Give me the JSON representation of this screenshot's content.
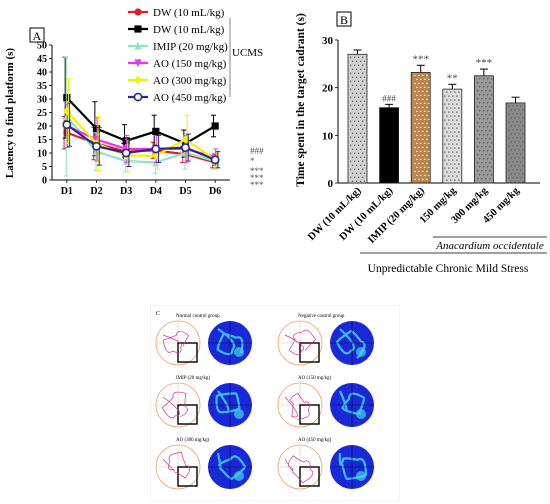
{
  "colors": {
    "dw_control": "#dd1f26",
    "dw_ucms": "#000000",
    "imip": "#8ee3c8",
    "ao150": "#ee33ee",
    "ao300": "#f4f000",
    "ao450": "#2a2a8c",
    "maze_bg": "#1a28d8",
    "maze_hot": "#3fd8f0"
  },
  "panel_a": {
    "label": "A",
    "ucms_label": "UCMS",
    "sig": [
      "###",
      "*",
      "***",
      "***",
      "***"
    ]
  },
  "panel_b": {
    "label": "B",
    "sigs": [
      "",
      "###",
      "***",
      "**",
      "***",
      ""
    ],
    "ao_label": "Anacardium occidentale",
    "ucms_label": "Unpredictable Chronic Mild Stress"
  },
  "panel_c": {
    "label": "C",
    "groups": [
      "Normal control group",
      "Negative control group",
      "IMIP (20 mg/kg)",
      "AO (150 mg/kg)",
      "AO (300 mg/kg)",
      "AO (450 mg/kg)"
    ]
  },
  "chart_data": [
    {
      "type": "line",
      "panel": "A",
      "title": "",
      "xlabel": "",
      "ylabel": "Latency to find platform (s)",
      "x": [
        "D1",
        "D2",
        "D3",
        "D4",
        "D5",
        "D6"
      ],
      "ylim": [
        0,
        50
      ],
      "yticks": [
        0,
        5,
        10,
        15,
        20,
        25,
        30,
        35,
        40,
        45,
        50
      ],
      "legend_position": "top-right",
      "series": [
        {
          "name": "DW (10 mL/kg)",
          "values": [
            17.5,
            13.5,
            10.5,
            11.0,
            9.5,
            6.5
          ],
          "errors": [
            6,
            6,
            3,
            3,
            3,
            2
          ],
          "color": "#dd1f26",
          "marker": "circle"
        },
        {
          "name": "DW (10 mL/kg)",
          "values": [
            30.5,
            19.0,
            14.5,
            18.0,
            13.5,
            20.0
          ],
          "errors": [
            15,
            10,
            6,
            6,
            5,
            4
          ],
          "color": "#000000",
          "marker": "square"
        },
        {
          "name": "IMIP (20 mg/kg)",
          "values": [
            23.5,
            10.5,
            7.0,
            6.5,
            10.0,
            7.0
          ],
          "errors": [
            22,
            7,
            4,
            4,
            6,
            3
          ],
          "color": "#8ee3c8",
          "marker": "triangle"
        },
        {
          "name": "AO (150 mg/kg)",
          "values": [
            20.0,
            15.0,
            11.5,
            11.5,
            11.5,
            8.5
          ],
          "errors": [
            8,
            8,
            5,
            5,
            5,
            3
          ],
          "color": "#ee33ee",
          "marker": "triangle-down"
        },
        {
          "name": "AO (300 mg/kg)",
          "values": [
            25.5,
            13.5,
            9.0,
            9.0,
            15.0,
            7.5
          ],
          "errors": [
            12,
            10,
            6,
            5,
            9,
            3
          ],
          "color": "#f4f000",
          "marker": "diamond"
        },
        {
          "name": "AO (450 mg/kg)",
          "values": [
            20.5,
            12.5,
            10.0,
            11.5,
            12.0,
            7.5
          ],
          "errors": [
            8,
            7,
            5,
            5,
            5,
            3
          ],
          "color": "#2a2a8c",
          "marker": "circle-open"
        }
      ]
    },
    {
      "type": "bar",
      "panel": "B",
      "title": "",
      "xlabel": "",
      "ylabel": "Time spent in the target cadrant (s)",
      "categories": [
        "DW (10 mL/kg)",
        "DW (10 mL/kg)",
        "IMIP (20 mg/kg)",
        "150 mg/kg",
        "300 mg/kg",
        "450 mg/kg"
      ],
      "values": [
        27.0,
        15.8,
        23.2,
        19.7,
        22.5,
        16.8
      ],
      "errors": [
        0.9,
        0.7,
        1.5,
        1.0,
        1.4,
        1.2
      ],
      "ylim": [
        0,
        30
      ],
      "yticks": [
        0,
        10,
        20,
        30
      ],
      "bar_colors": [
        "#d0d0d0",
        "#000000",
        "#b8864f",
        "#dcdcdc",
        "#9a9a9a",
        "#8a8a8a"
      ]
    }
  ]
}
